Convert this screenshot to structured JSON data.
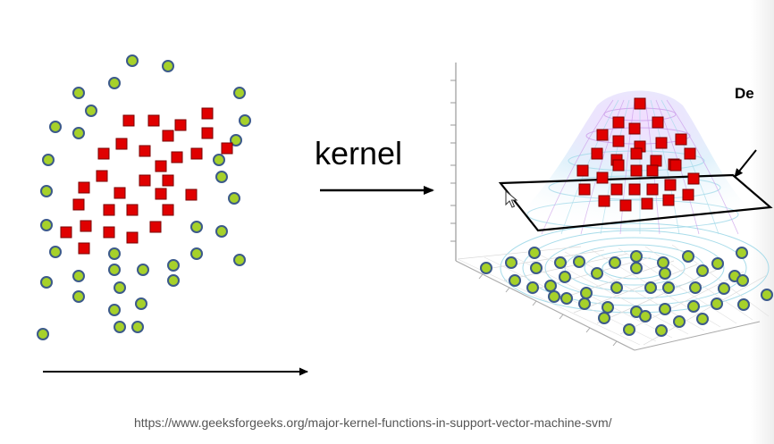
{
  "diagram": {
    "kernel_label": "kernel",
    "cropped_label": "De",
    "source_url": "https://www.geeksforgeeks.org/major-kernel-functions-in-support-vector-machine-svm/"
  },
  "colors": {
    "class_a_fill": "#e00000",
    "class_a_stroke": "#7a0000",
    "class_b_fill": "#a6d12a",
    "class_b_stroke": "#3c5a8a",
    "surface_mesh": "#9fd8e8",
    "surface_top": "#c99ae8",
    "axis": "#000000",
    "url_text": "#555555"
  },
  "icons": {
    "class_a_marker": "red-square-icon",
    "class_b_marker": "green-circle-icon",
    "pointer": "mouse-cursor-icon"
  }
}
